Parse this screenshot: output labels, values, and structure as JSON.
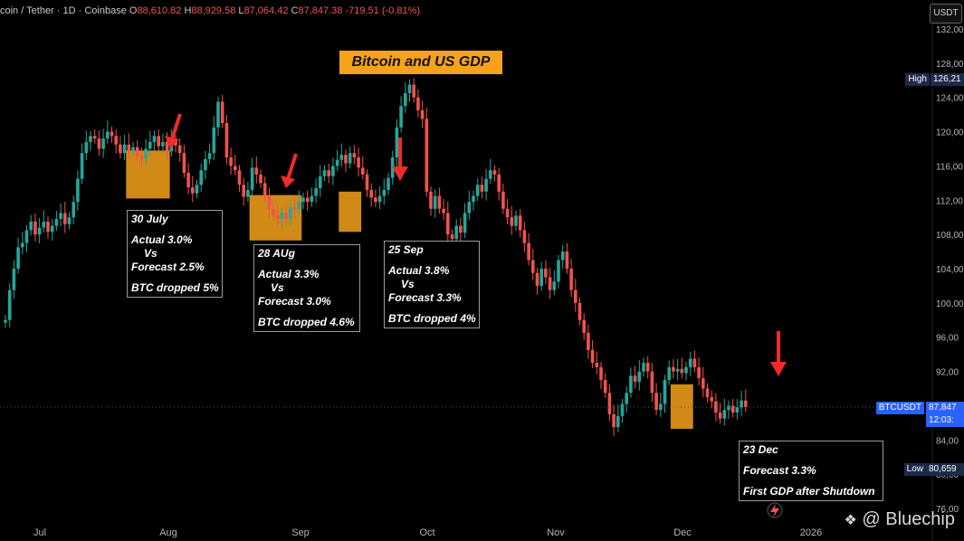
{
  "header": {
    "symbol_text": "coin / Tether · 1D · Coinbase",
    "o_label": "O",
    "o_value": "88,610.82",
    "h_label": "H",
    "h_value": "88,929.58",
    "l_label": "L",
    "l_value": "87,064.42",
    "c_label": "C",
    "c_value": "87,847.38",
    "change": "-719.51 (-0.81%)",
    "currency": "USDT"
  },
  "title": "Bitcoin and US GDP",
  "annotations": [
    {
      "date": "30 July",
      "actual": "Actual 3.0%",
      "vs": "Vs",
      "forecast": "Forecast 2.5%",
      "result": "BTC dropped 5%"
    },
    {
      "date": "28 AUg",
      "actual": "Actual 3.3%",
      "vs": "Vs",
      "forecast": "Forecast 3.0%",
      "result": "BTC dropped 4.6%"
    },
    {
      "date": "25 Sep",
      "actual": "Actual 3.8%",
      "vs": "Vs",
      "forecast": "Forecast 3.3%",
      "result": "BTC dropped 4%"
    },
    {
      "date": "23 Dec",
      "forecast": "Forecast 3.3%",
      "result": "First GDP after Shutdown"
    }
  ],
  "badges": {
    "high_label": "High",
    "high_value": "126,21",
    "btc_label": "BTCUSDT",
    "btc_value": "87,847",
    "btc_time": "12:03:",
    "low_label": "Low",
    "low_value": "80,659"
  },
  "watermark": "@ Bluechip",
  "colors": {
    "up": "#26a69a",
    "down": "#ef5350",
    "highlight": "#f7a21b",
    "arrow": "#ef2b2b"
  },
  "chart_data": {
    "type": "candlestick",
    "y_ticks": [
      "132,00",
      "128,00",
      "124,00",
      "120,00",
      "116,00",
      "112,00",
      "108,00",
      "104,00",
      "100,00",
      "96,00",
      "92,00",
      "88,00",
      "84,00",
      "80,00",
      "76,00"
    ],
    "x_ticks": [
      "Jul",
      "Aug",
      "Sep",
      "Oct",
      "Nov",
      "Dec",
      "2026"
    ],
    "ylim": [
      76000,
      132000
    ],
    "series_close": [
      98000,
      101500,
      104000,
      106500,
      107000,
      108500,
      109500,
      108000,
      108800,
      109500,
      108300,
      109000,
      109800,
      110500,
      109200,
      110000,
      111800,
      114500,
      117500,
      118800,
      119500,
      119200,
      118000,
      119200,
      120000,
      119500,
      118500,
      117500,
      118500,
      117800,
      118200,
      117200,
      116800,
      118000,
      118800,
      119500,
      118300,
      118800,
      117700,
      119000,
      118400,
      117500,
      115200,
      113500,
      112800,
      113800,
      115500,
      116800,
      117500,
      120500,
      123500,
      121000,
      117000,
      116000,
      115500,
      113800,
      112400,
      113200,
      115800,
      115000,
      114000,
      112500,
      111000,
      110200,
      109800,
      110500,
      109800,
      111200,
      110900,
      111800,
      112300,
      111800,
      112500,
      113400,
      114800,
      115500,
      114800,
      116000,
      116700,
      117300,
      116300,
      117500,
      117000,
      115800,
      115000,
      113200,
      112300,
      111800,
      112500,
      113200,
      114600,
      117000,
      120500,
      123000,
      124500,
      125500,
      124000,
      122500,
      121500,
      113000,
      111000,
      112500,
      111000,
      110500,
      108000,
      107500,
      109000,
      108200,
      110500,
      111800,
      112500,
      113800,
      113000,
      114500,
      115500,
      115000,
      113000,
      111000,
      110000,
      109000,
      110200,
      108500,
      107000,
      105000,
      103500,
      102000,
      104000,
      103000,
      101500,
      102500,
      105000,
      106000,
      104000,
      101500,
      100000,
      98000,
      96500,
      94500,
      93000,
      92500,
      91000,
      89500,
      87000,
      85500,
      86800,
      88200,
      89500,
      91500,
      90800,
      92000,
      93000,
      92000,
      89500,
      87500,
      88200,
      91000,
      92500,
      92000,
      92300,
      91800,
      92500,
      93500,
      92500,
      91200,
      90000,
      89000,
      88500,
      87200,
      86500,
      87500,
      88000,
      87200,
      87800,
      88600,
      87850
    ],
    "highlights": [
      {
        "label": "30 July",
        "from_idx": 29,
        "to_idx": 38,
        "y_top": 117800,
        "y_bot": 112200
      },
      {
        "label": "28 AUg",
        "from_idx": 58,
        "to_idx": 69,
        "y_top": 112600,
        "y_bot": 107300
      },
      {
        "label": "25 Sep",
        "from_idx": 79,
        "to_idx": 83,
        "y_top": 113000,
        "y_bot": 108300
      },
      {
        "label": "23 Dec",
        "from_idx": 157,
        "to_idx": 161,
        "y_top": 90500,
        "y_bot": 85300
      }
    ],
    "high_value": 126210,
    "low_value": 80659,
    "last_value": 87847
  }
}
